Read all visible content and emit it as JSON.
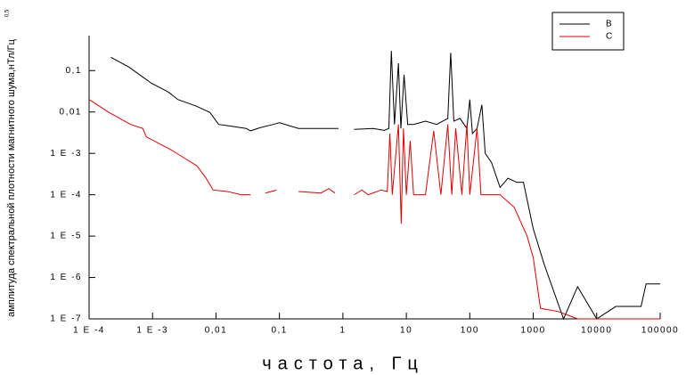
{
  "chart_data": {
    "type": "line",
    "y_label": "амплитуда спектральной плотности магнитного шума,нТл/Гц",
    "y_label_superscript": "0,5",
    "x_label": "частота, Гц",
    "log_x": true,
    "log_y": true,
    "legend": "top-right",
    "xlim": [
      0.0001,
      100000
    ],
    "ylim": [
      1e-07,
      0.7
    ],
    "xticks": [
      {
        "value": 0.0001,
        "label": "1 E -4"
      },
      {
        "value": 0.001,
        "label": "1 E -3"
      },
      {
        "value": 0.01,
        "label": "0,01"
      },
      {
        "value": 0.1,
        "label": "0,1"
      },
      1,
      10,
      100,
      1000,
      10000,
      100000
    ],
    "yticks": [
      {
        "value": 1e-07,
        "label": "1 E -7"
      },
      {
        "value": 1e-06,
        "label": "1 E -6"
      },
      {
        "value": 1e-05,
        "label": "1 E -5"
      },
      {
        "value": 0.0001,
        "label": "1 E -4"
      },
      {
        "value": 0.001,
        "label": "1 E -3"
      },
      {
        "value": 0.01,
        "label": "0,01"
      },
      {
        "value": 0.1,
        "label": "0,1"
      }
    ],
    "series": [
      {
        "name": "B",
        "color": "#000000",
        "x": [
          0.00022,
          0.00043,
          0.0007,
          0.00095,
          0.0018,
          0.0025,
          0.0048,
          0.008,
          0.011,
          0.018,
          0.03,
          0.035,
          0.05,
          0.08,
          0.1,
          0.2,
          0.5,
          0.85,
          1.2,
          1.5,
          3,
          4.5,
          5.3,
          5.8,
          6.5,
          7.5,
          8.2,
          9.2,
          10.5,
          13,
          20,
          30,
          45,
          50,
          56,
          70,
          90,
          100,
          110,
          130,
          155,
          175,
          220,
          300,
          400,
          550,
          700,
          1000,
          1500,
          3000,
          5000,
          10000,
          20000,
          50000,
          60000,
          100000
        ],
        "values": [
          0.21,
          0.12,
          0.07,
          0.05,
          0.03,
          0.02,
          0.014,
          0.0098,
          0.005,
          0.0045,
          0.004,
          0.0035,
          0.0042,
          0.005,
          0.0055,
          0.004,
          0.004,
          0.004,
          null,
          0.0038,
          0.004,
          0.0036,
          0.004,
          0.3,
          0.005,
          0.15,
          0.004,
          0.08,
          0.005,
          0.005,
          0.006,
          0.005,
          0.007,
          0.27,
          0.006,
          0.007,
          0.004,
          0.02,
          0.003,
          0.004,
          0.015,
          0.001,
          0.0006,
          0.00015,
          0.00025,
          0.0002,
          0.0002,
          1.5e-05,
          2e-06,
          1e-07,
          6e-07,
          1e-07,
          2e-07,
          2e-07,
          7e-07,
          7e-07
        ]
      },
      {
        "name": "C",
        "color": "#e00000",
        "x": [
          0.0001,
          0.0002,
          0.00045,
          0.0007,
          0.0008,
          0.002,
          0.0035,
          0.005,
          0.007,
          0.009,
          0.015,
          0.025,
          0.035,
          0.045,
          0.06,
          0.09,
          0.12,
          0.2,
          0.45,
          0.6,
          0.75,
          1,
          1.5,
          2,
          2.5,
          4,
          5,
          5.5,
          6,
          7.5,
          8.3,
          9,
          10,
          11.5,
          13,
          20,
          27,
          35,
          45,
          52,
          60,
          75,
          90,
          100,
          130,
          150,
          300,
          500,
          800,
          1000,
          1300,
          2500,
          5000,
          100000
        ],
        "values": [
          0.02,
          0.01,
          0.005,
          0.004,
          0.0025,
          0.0012,
          0.0007,
          0.0005,
          0.00025,
          0.00013,
          0.00012,
          0.0001,
          0.0001,
          null,
          0.00011,
          0.00013,
          null,
          0.00012,
          0.00011,
          0.00014,
          0.00011,
          null,
          0.0001,
          0.00013,
          0.0001,
          0.00013,
          0.00012,
          0.003,
          0.0001,
          0.005,
          2e-05,
          0.004,
          0.0001,
          0.002,
          0.0001,
          0.0001,
          0.0035,
          0.0001,
          0.005,
          0.0001,
          0.004,
          0.0001,
          0.005,
          0.0001,
          0.004,
          0.0001,
          0.0001,
          5e-05,
          1e-05,
          3e-06,
          1.8e-07,
          1.5e-07,
          1e-07,
          1e-07
        ]
      }
    ]
  }
}
